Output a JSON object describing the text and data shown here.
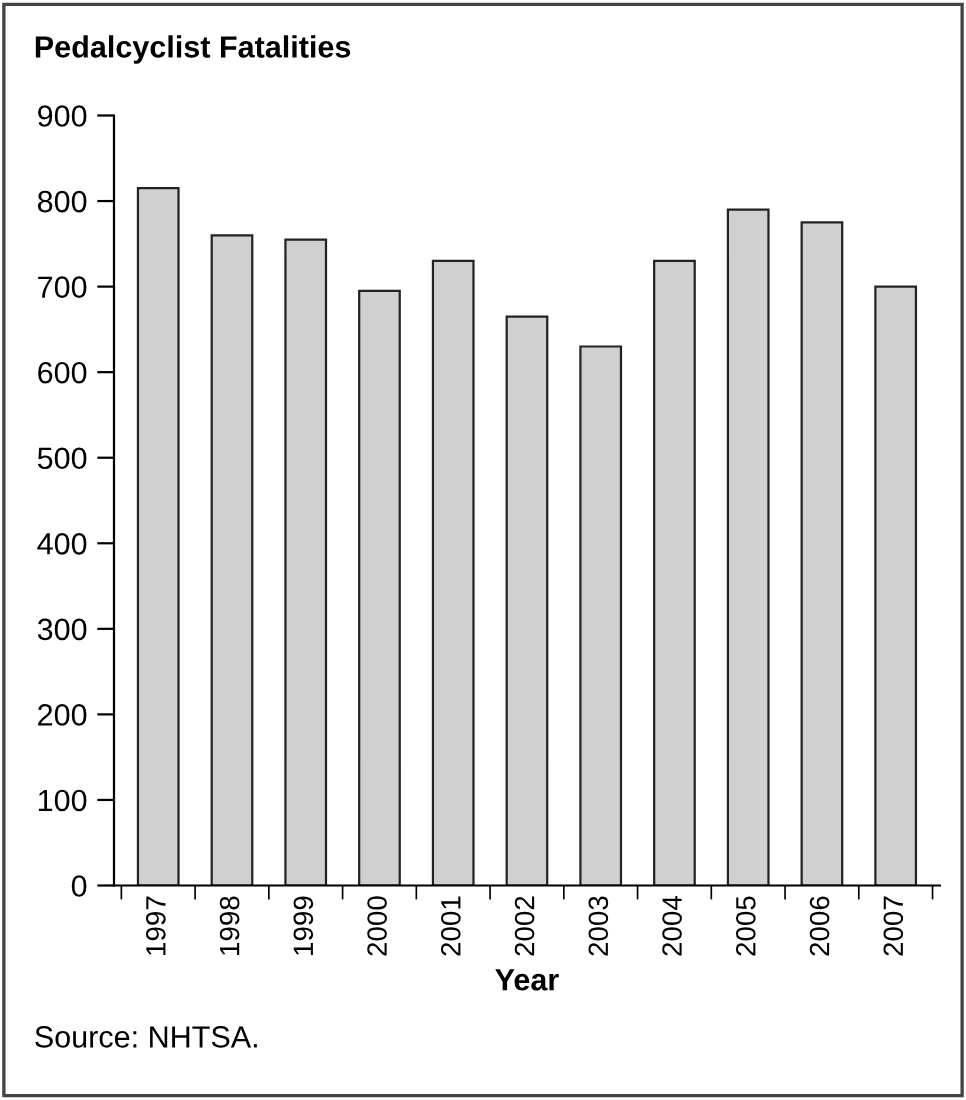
{
  "chart_data": {
    "type": "bar",
    "title": "Pedalcyclist Fatalities",
    "xlabel": "Year",
    "categories": [
      "1997",
      "1998",
      "1999",
      "2000",
      "2001",
      "2002",
      "2003",
      "2004",
      "2005",
      "2006",
      "2007"
    ],
    "values": [
      815,
      760,
      755,
      695,
      730,
      665,
      630,
      730,
      790,
      775,
      700
    ],
    "color": "#d0d0d0",
    "ylim": [
      0,
      900
    ],
    "yticks": [
      0,
      100,
      200,
      300,
      400,
      500,
      600,
      700,
      800,
      900
    ],
    "grid": false,
    "annotations": [
      "Source: NHTSA."
    ]
  }
}
